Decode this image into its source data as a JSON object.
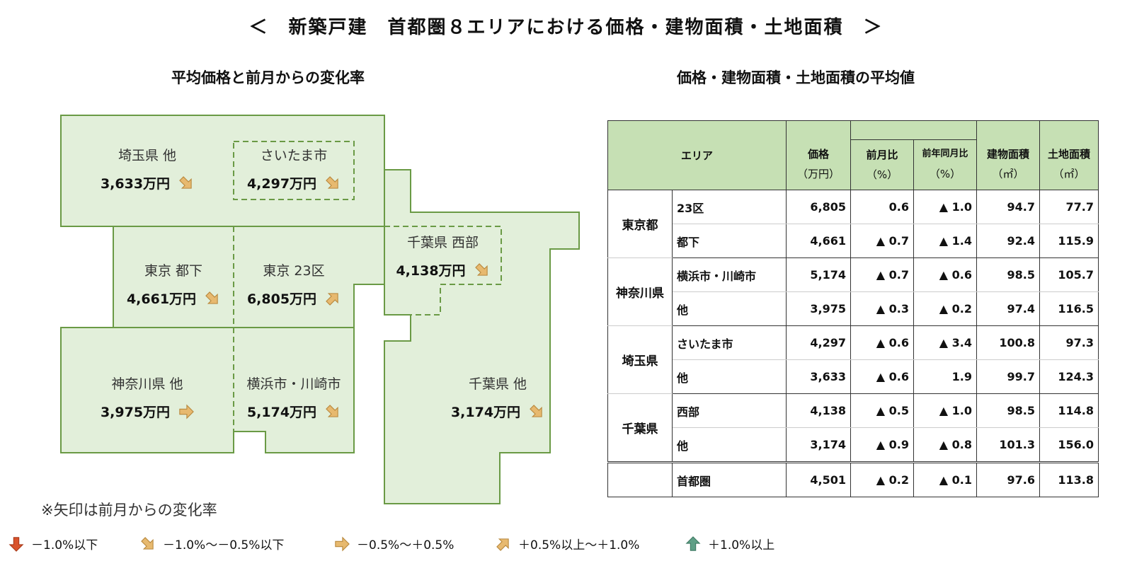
{
  "title": "＜　新築戸建　首都圏８エリアにおける価格・建物面積・土地面積　＞",
  "left_subtitle": "平均価格と前月からの変化率",
  "right_subtitle": "価格・建物面積・土地面積の平均値",
  "colors": {
    "region_fill": "#e2efda",
    "region_border": "#6a9a45",
    "header_fill": "#c6e0b4",
    "arrow_tan": "#e7b96f",
    "arrow_red": "#d9532c",
    "arrow_green": "#5f9f86"
  },
  "map": [
    {
      "name": "埼玉県 他",
      "price": "3,633万円",
      "arrow": "down-right"
    },
    {
      "name": "さいたま市",
      "price": "4,297万円",
      "arrow": "down-right"
    },
    {
      "name": "千葉県 西部",
      "price": "4,138万円",
      "arrow": "down-right"
    },
    {
      "name": "東京 都下",
      "price": "4,661万円",
      "arrow": "down-right"
    },
    {
      "name": "東京 23区",
      "price": "6,805万円",
      "arrow": "up-right"
    },
    {
      "name": "神奈川県 他",
      "price": "3,975万円",
      "arrow": "right"
    },
    {
      "name": "横浜市・川崎市",
      "price": "5,174万円",
      "arrow": "down-right"
    },
    {
      "name": "千葉県 他",
      "price": "3,174万円",
      "arrow": "down-right"
    }
  ],
  "note": "※矢印は前月からの変化率",
  "legend": [
    {
      "arrow": "down",
      "label": "－1.0%以下"
    },
    {
      "arrow": "down-right",
      "label": "－1.0%～－0.5%以下"
    },
    {
      "arrow": "right",
      "label": "－0.5%～＋0.5%"
    },
    {
      "arrow": "up-right",
      "label": "＋0.5%以上～＋1.0%"
    },
    {
      "arrow": "up",
      "label": "＋1.0%以上"
    }
  ],
  "table": {
    "headers": {
      "area": "エリア",
      "price": "価格",
      "price_unit": "（万円）",
      "mom": "前月比",
      "mom_unit": "（%）",
      "yoy": "前年同月比",
      "yoy_unit": "（%）",
      "building": "建物面積",
      "building_unit": "（㎡）",
      "land": "土地面積",
      "land_unit": "（㎡）"
    },
    "groups": [
      {
        "pref": "東京都",
        "rows": [
          {
            "sub": "23区",
            "price": "6,805",
            "mom": "0.6",
            "yoy": "▲ 1.0",
            "building": "94.7",
            "land": "77.7"
          },
          {
            "sub": "都下",
            "price": "4,661",
            "mom": "▲ 0.7",
            "yoy": "▲ 1.4",
            "building": "92.4",
            "land": "115.9"
          }
        ]
      },
      {
        "pref": "神奈川県",
        "rows": [
          {
            "sub": "横浜市・川崎市",
            "price": "5,174",
            "mom": "▲ 0.7",
            "yoy": "▲ 0.6",
            "building": "98.5",
            "land": "105.7"
          },
          {
            "sub": "他",
            "price": "3,975",
            "mom": "▲ 0.3",
            "yoy": "▲ 0.2",
            "building": "97.4",
            "land": "116.5"
          }
        ]
      },
      {
        "pref": "埼玉県",
        "rows": [
          {
            "sub": "さいたま市",
            "price": "4,297",
            "mom": "▲ 0.6",
            "yoy": "▲ 3.4",
            "building": "100.8",
            "land": "97.3"
          },
          {
            "sub": "他",
            "price": "3,633",
            "mom": "▲ 0.6",
            "yoy": "1.9",
            "building": "99.7",
            "land": "124.3"
          }
        ]
      },
      {
        "pref": "千葉県",
        "rows": [
          {
            "sub": "西部",
            "price": "4,138",
            "mom": "▲ 0.5",
            "yoy": "▲ 1.0",
            "building": "98.5",
            "land": "114.8"
          },
          {
            "sub": "他",
            "price": "3,174",
            "mom": "▲ 0.9",
            "yoy": "▲ 0.8",
            "building": "101.3",
            "land": "156.0"
          }
        ]
      }
    ],
    "total": {
      "sub": "首都圏",
      "price": "4,501",
      "mom": "▲ 0.2",
      "yoy": "▲ 0.1",
      "building": "97.6",
      "land": "113.8"
    }
  }
}
